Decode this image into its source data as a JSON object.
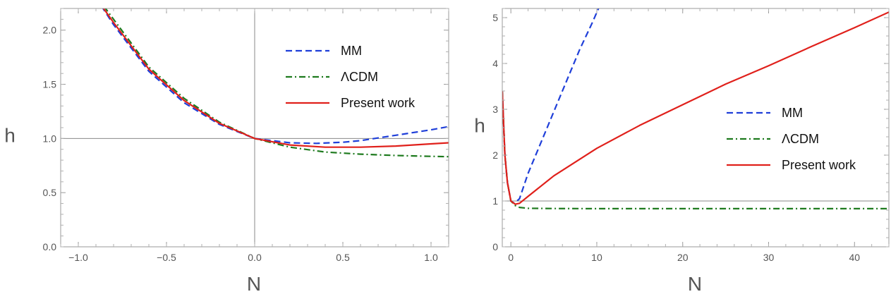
{
  "chart_data": [
    {
      "type": "line",
      "xlabel": "N",
      "ylabel": "h",
      "xlim": [
        -1.1,
        1.1
      ],
      "ylim": [
        0,
        2.2
      ],
      "xticks": [
        "−1.0",
        "−0.5",
        "0.0",
        "0.5",
        "1.0"
      ],
      "xtick_values": [
        -1.0,
        -0.5,
        0.0,
        0.5,
        1.0
      ],
      "yticks": [
        "0.0",
        "0.5",
        "1.0",
        "1.5",
        "2.0"
      ],
      "ytick_values": [
        0.0,
        0.5,
        1.0,
        1.5,
        2.0
      ],
      "legend_position": "top-right",
      "reference_lines": {
        "x": 0,
        "y": 1
      },
      "series": [
        {
          "name": "MM",
          "color": "#1f3fd9",
          "style": "dashed",
          "x": [
            -0.9,
            -0.8,
            -0.6,
            -0.4,
            -0.2,
            0.0,
            0.2,
            0.35,
            0.5,
            0.6,
            0.8,
            1.0,
            1.1
          ],
          "y": [
            2.3,
            2.05,
            1.62,
            1.33,
            1.13,
            1.0,
            0.96,
            0.955,
            0.965,
            0.98,
            1.03,
            1.08,
            1.11
          ]
        },
        {
          "name": "ΛCDM",
          "color": "#1e7a1e",
          "style": "dashdot",
          "x": [
            -0.9,
            -0.8,
            -0.6,
            -0.4,
            -0.2,
            0.0,
            0.2,
            0.4,
            0.6,
            0.8,
            1.0,
            1.1
          ],
          "y": [
            2.32,
            2.1,
            1.66,
            1.37,
            1.15,
            1.0,
            0.92,
            0.875,
            0.855,
            0.843,
            0.835,
            0.832
          ]
        },
        {
          "name": "Present work",
          "color": "#e0201b",
          "style": "solid",
          "x": [
            -0.9,
            -0.8,
            -0.6,
            -0.4,
            -0.2,
            0.0,
            0.2,
            0.4,
            0.6,
            0.8,
            1.0,
            1.1
          ],
          "y": [
            2.3,
            2.07,
            1.64,
            1.35,
            1.14,
            1.0,
            0.94,
            0.92,
            0.92,
            0.93,
            0.95,
            0.96
          ]
        }
      ]
    },
    {
      "type": "line",
      "xlabel": "N",
      "ylabel": "h",
      "xlim": [
        -1,
        44
      ],
      "ylim": [
        0,
        5.2
      ],
      "xticks": [
        "0",
        "10",
        "20",
        "30",
        "40"
      ],
      "xtick_values": [
        0,
        10,
        20,
        30,
        40
      ],
      "yticks": [
        "0",
        "1",
        "2",
        "3",
        "4",
        "5"
      ],
      "ytick_values": [
        0,
        1,
        2,
        3,
        4,
        5
      ],
      "legend_position": "center-right",
      "reference_lines": {
        "y": 1
      },
      "series": [
        {
          "name": "MM",
          "color": "#1f3fd9",
          "style": "dashed",
          "x": [
            -1,
            -0.7,
            -0.4,
            0,
            0.4,
            1,
            2,
            4,
            6,
            8,
            9.5,
            10.2
          ],
          "y": [
            3.4,
            2.0,
            1.4,
            1.0,
            0.95,
            1.05,
            1.6,
            2.5,
            3.4,
            4.3,
            4.9,
            5.2
          ]
        },
        {
          "name": "ΛCDM",
          "color": "#1e7a1e",
          "style": "dashdot",
          "x": [
            -1,
            -0.7,
            -0.4,
            0,
            0.5,
            1,
            2,
            5,
            10,
            20,
            30,
            44
          ],
          "y": [
            3.4,
            2.0,
            1.4,
            1.0,
            0.9,
            0.86,
            0.84,
            0.835,
            0.833,
            0.833,
            0.833,
            0.833
          ]
        },
        {
          "name": "Present work",
          "color": "#e0201b",
          "style": "solid",
          "x": [
            -1,
            -0.7,
            -0.4,
            0,
            0.5,
            1,
            2,
            5,
            10,
            15,
            20,
            25,
            30,
            35,
            40,
            44
          ],
          "y": [
            3.4,
            2.0,
            1.4,
            1.0,
            0.93,
            0.95,
            1.1,
            1.55,
            2.15,
            2.65,
            3.1,
            3.55,
            3.95,
            4.37,
            4.78,
            5.12
          ]
        }
      ]
    }
  ]
}
